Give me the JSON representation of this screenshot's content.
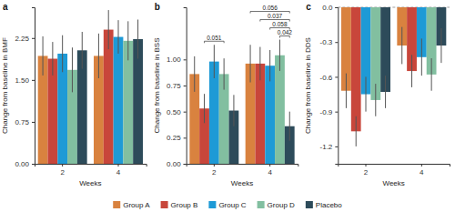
{
  "chart_data": [
    {
      "type": "bar",
      "title": "a",
      "x_label": "Weeks",
      "y_label": "Change from baseline in BMF",
      "categories": [
        "2",
        "4"
      ],
      "ylim": [
        0,
        2.8
      ],
      "yticks": [
        {
          "value": 0,
          "label": "0.00"
        },
        {
          "value": 0.75,
          "label": "0.75"
        },
        {
          "value": 1.5,
          "label": "1.50"
        },
        {
          "value": 2.25,
          "label": "2.25"
        }
      ],
      "series": [
        {
          "name": "Group A",
          "color": "#D9823F",
          "values": [
            1.93,
            1.93
          ],
          "errors": [
            0.35,
            0.4
          ]
        },
        {
          "name": "Group B",
          "color": "#C8463B",
          "values": [
            1.88,
            2.4
          ],
          "errors": [
            0.3,
            0.35
          ]
        },
        {
          "name": "Group C",
          "color": "#1E9AD6",
          "values": [
            1.97,
            2.27
          ],
          "errors": [
            0.33,
            0.3
          ]
        },
        {
          "name": "Group D",
          "color": "#82BFA0",
          "values": [
            1.68,
            2.2
          ],
          "errors": [
            0.4,
            0.35
          ]
        },
        {
          "name": "Placebo",
          "color": "#2D4B5A",
          "values": [
            2.03,
            2.23
          ],
          "errors": [
            0.33,
            0.35
          ]
        }
      ]
    },
    {
      "type": "bar",
      "title": "b",
      "x_label": "Weeks",
      "y_label": "Change from baseline in BSS",
      "categories": [
        "2",
        "4"
      ],
      "ylim": [
        0,
        1.5
      ],
      "yticks": [
        {
          "value": 0,
          "label": "0.00"
        },
        0.25,
        {
          "value": 0.5,
          "label": "0.50"
        },
        0.75,
        {
          "value": 1,
          "label": "1.00"
        }
      ],
      "legend": "bottom",
      "series": [
        {
          "name": "Group A",
          "color": "#D9823F",
          "values": [
            0.86,
            0.96
          ],
          "errors": [
            0.17,
            0.18
          ]
        },
        {
          "name": "Group B",
          "color": "#C8463B",
          "values": [
            0.53,
            0.96
          ],
          "errors": [
            0.14,
            0.16
          ]
        },
        {
          "name": "Group C",
          "color": "#1E9AD6",
          "values": [
            0.98,
            0.94
          ],
          "errors": [
            0.16,
            0.15
          ]
        },
        {
          "name": "Group D",
          "color": "#82BFA0",
          "values": [
            0.86,
            1.04
          ],
          "errors": [
            0.15,
            0.15
          ]
        },
        {
          "name": "Placebo",
          "color": "#2D4B5A",
          "values": [
            0.51,
            0.36
          ],
          "errors": [
            0.15,
            0.14
          ]
        }
      ],
      "annotations": [
        {
          "x": "2",
          "from": "Group B",
          "to": "Group D",
          "label": "0.051"
        },
        {
          "x": "4",
          "from": "Group A",
          "to": "Placebo",
          "label": "0.056"
        },
        {
          "x": "4",
          "from": "Group B",
          "to": "Placebo",
          "label": "0.037"
        },
        {
          "x": "4",
          "from": "Group C",
          "to": "Placebo",
          "label": "0.058"
        },
        {
          "x": "4",
          "from": "Group D",
          "to": "Placebo",
          "label": "0.042"
        }
      ]
    },
    {
      "type": "bar",
      "title": "c",
      "x_label": "Weeks",
      "y_label": "Change from baseline in DDS",
      "categories": [
        "2",
        "4"
      ],
      "ylim": [
        -1.35,
        0
      ],
      "yticks": [
        -1.2,
        -0.9,
        -0.6,
        -0.3,
        {
          "value": 0,
          "label": "0.0"
        }
      ],
      "series": [
        {
          "name": "Group A",
          "color": "#D9823F",
          "values": [
            -0.72,
            -0.33
          ],
          "errors": [
            0.15,
            0.16
          ]
        },
        {
          "name": "Group B",
          "color": "#C8463B",
          "values": [
            -1.07,
            -0.55
          ],
          "errors": [
            0.13,
            0.14
          ]
        },
        {
          "name": "Group C",
          "color": "#1E9AD6",
          "values": [
            -0.75,
            -0.43
          ],
          "errors": [
            0.15,
            0.16
          ]
        },
        {
          "name": "Group D",
          "color": "#82BFA0",
          "values": [
            -0.8,
            -0.58
          ],
          "errors": [
            0.14,
            0.14
          ]
        },
        {
          "name": "Placebo",
          "color": "#2D4B5A",
          "values": [
            -0.73,
            -0.33
          ],
          "errors": [
            0.14,
            0.15
          ]
        }
      ]
    }
  ]
}
